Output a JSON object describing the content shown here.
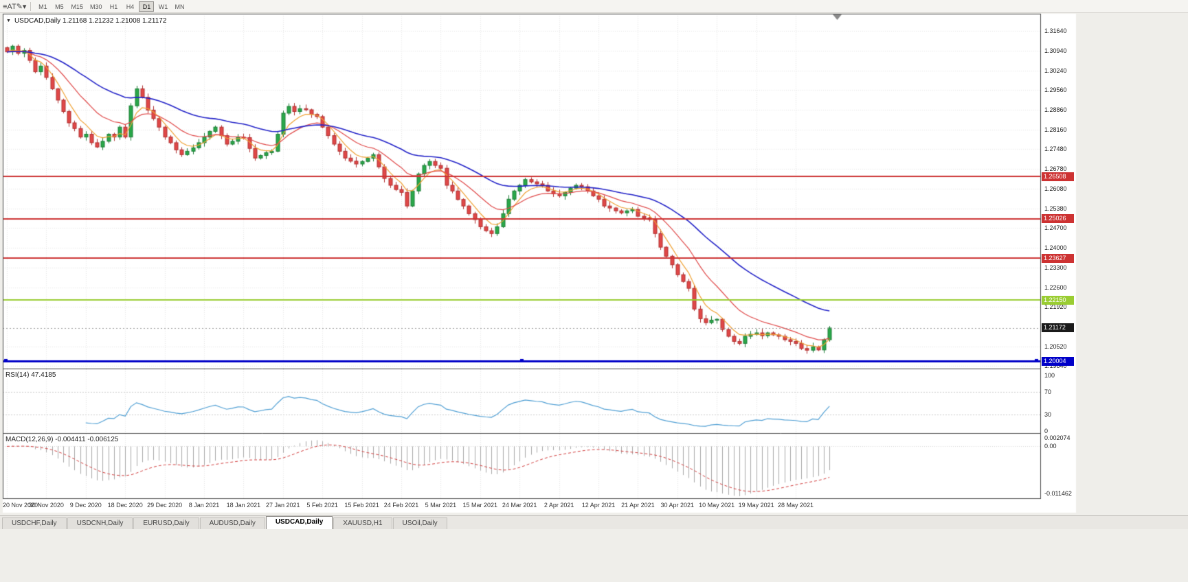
{
  "toolbar": {
    "icons": [
      {
        "name": "menu-icon",
        "glyph": "≡"
      },
      {
        "name": "cursor-icon",
        "glyph": "A"
      },
      {
        "name": "text-icon",
        "glyph": "T"
      },
      {
        "name": "draw-icon",
        "glyph": "✎"
      },
      {
        "name": "chevron-down-icon",
        "glyph": "▾"
      }
    ],
    "timeframes": [
      "M1",
      "M5",
      "M15",
      "M30",
      "H1",
      "H4",
      "D1",
      "W1",
      "MN"
    ],
    "active_timeframe": "D1"
  },
  "chart": {
    "collapse_glyph": "▼",
    "header": "USDCAD,Daily 1.21168 1.21232 1.21008 1.21172",
    "symbol": "USDCAD",
    "period": "Daily",
    "open": "1.21168",
    "high": "1.21232",
    "low": "1.21008",
    "close": "1.21172"
  },
  "price_axis": {
    "labels": [
      "1.31640",
      "1.30940",
      "1.30240",
      "1.29560",
      "1.28860",
      "1.28160",
      "1.27480",
      "1.26780",
      "1.26080",
      "1.25380",
      "1.24700",
      "1.24000",
      "1.23300",
      "1.22600",
      "1.21920",
      "1.20520",
      "1.19840"
    ]
  },
  "price_tags": [
    {
      "text": "1.26508",
      "value": 1.26508,
      "bg": "#cd3232"
    },
    {
      "text": "1.25026",
      "value": 1.25026,
      "bg": "#cd3232"
    },
    {
      "text": "1.23627",
      "value": 1.23627,
      "bg": "#cd3232"
    },
    {
      "text": "1.22150",
      "value": 1.2215,
      "bg": "#9acd32"
    },
    {
      "text": "1.21172",
      "value": 1.21172,
      "bg": "#1a1a1a"
    },
    {
      "text": "1.20004",
      "value": 1.20004,
      "bg": "#0000c8"
    }
  ],
  "indicators": {
    "rsi": {
      "label": "RSI(14) 47.4185",
      "period": 14,
      "value": "47.4185",
      "levels": [
        "100",
        "70",
        "30",
        "0"
      ],
      "line_color": "#4f9fd4"
    },
    "macd": {
      "label": "MACD(12,26,9) -0.004411 -0.006125",
      "values": "-0.004411 -0.006125",
      "levels": [
        "0.002074",
        "0.00",
        "-0.011462"
      ],
      "histogram_color": "#a8a8a8",
      "signal_color": "#d23b3b"
    }
  },
  "date_axis": {
    "bars_per_label": 7,
    "labels": [
      "20 Nov 2020",
      "30 Nov 2020",
      "9 Dec 2020",
      "18 Dec 2020",
      "29 Dec 2020",
      "8 Jan 2021",
      "18 Jan 2021",
      "27 Jan 2021",
      "5 Feb 2021",
      "15 Feb 2021",
      "24 Feb 2021",
      "5 Mar 2021",
      "15 Mar 2021",
      "24 Mar 2021",
      "2 Apr 2021",
      "12 Apr 2021",
      "21 Apr 2021",
      "30 Apr 2021",
      "10 May 2021",
      "19 May 2021",
      "28 May 2021"
    ]
  },
  "tabs": {
    "items": [
      {
        "label": "USDCHF,Daily",
        "active": false
      },
      {
        "label": "USDCNH,Daily",
        "active": false
      },
      {
        "label": "EURUSD,Daily",
        "active": false
      },
      {
        "label": "AUDUSD,Daily",
        "active": false
      },
      {
        "label": "USDCAD,Daily",
        "active": true
      },
      {
        "label": "XAUUSD,H1",
        "active": false
      },
      {
        "label": "USOil,Daily",
        "active": false
      }
    ]
  },
  "chart_data": {
    "type": "candlestick",
    "title": "USDCAD Daily",
    "ylim": [
      1.1984,
      1.3164
    ],
    "current_price": 1.21172,
    "up_color": "#2aa84a",
    "down_color": "#e04848",
    "closes": [
      1.309,
      1.311,
      1.3085,
      1.3095,
      1.306,
      1.302,
      1.304,
      1.3,
      1.296,
      1.292,
      1.288,
      1.284,
      1.282,
      1.279,
      1.28,
      1.277,
      1.2755,
      1.2775,
      1.28,
      1.279,
      1.2825,
      1.279,
      1.29,
      1.296,
      1.293,
      1.2885,
      1.2855,
      1.2825,
      1.279,
      1.277,
      1.2745,
      1.2728,
      1.274,
      1.2752,
      1.277,
      1.279,
      1.281,
      1.2825,
      1.2795,
      1.2765,
      1.2775,
      1.279,
      1.2788,
      1.275,
      1.2716,
      1.2725,
      1.2735,
      1.274,
      1.28,
      1.2874,
      1.2898,
      1.288,
      1.289,
      1.2886,
      1.287,
      1.2862,
      1.2825,
      1.2795,
      1.2765,
      1.274,
      1.2716,
      1.2705,
      1.2695,
      1.2704,
      1.2715,
      1.2728,
      1.2685,
      1.2644,
      1.262,
      1.2605,
      1.2595,
      1.2547,
      1.26,
      1.266,
      1.269,
      1.2704,
      1.269,
      1.268,
      1.262,
      1.26,
      1.257,
      1.2547,
      1.252,
      1.2499,
      1.2474,
      1.246,
      1.245,
      1.2474,
      1.252,
      1.2571,
      1.26,
      1.262,
      1.264,
      1.2632,
      1.2625,
      1.262,
      1.26,
      1.259,
      1.2583,
      1.2595,
      1.261,
      1.262,
      1.2615,
      1.26,
      1.2583,
      1.2571,
      1.2547,
      1.254,
      1.253,
      1.2523,
      1.253,
      1.2535,
      1.2511,
      1.2505,
      1.2499,
      1.245,
      1.2402,
      1.237,
      1.234,
      1.2305,
      1.2281,
      1.2257,
      1.2184,
      1.215,
      1.2136,
      1.2145,
      1.2148,
      1.2112,
      1.2088,
      1.207,
      1.2063,
      1.2088,
      1.2095,
      1.21,
      1.209,
      1.21,
      1.2093,
      1.2088,
      1.2076,
      1.207,
      1.2063,
      1.2045,
      1.2039,
      1.2051,
      1.204,
      1.2076,
      1.21172
    ],
    "horizontal_lines": [
      {
        "price": 1.26508,
        "color": "#cd3232",
        "width": 2
      },
      {
        "price": 1.25026,
        "color": "#cd3232",
        "width": 2
      },
      {
        "price": 1.23627,
        "color": "#cd3232",
        "width": 2
      },
      {
        "price": 1.2215,
        "color": "#9acd32",
        "width": 2
      },
      {
        "price": 1.20004,
        "color": "#0000c8",
        "width": 3
      }
    ],
    "moving_averages": [
      {
        "period": 5,
        "type": "ema",
        "color": "#f0a132"
      },
      {
        "period": 13,
        "type": "ema",
        "color": "#e04848"
      },
      {
        "period": 34,
        "type": "ema",
        "color": "#2222c8"
      }
    ]
  }
}
